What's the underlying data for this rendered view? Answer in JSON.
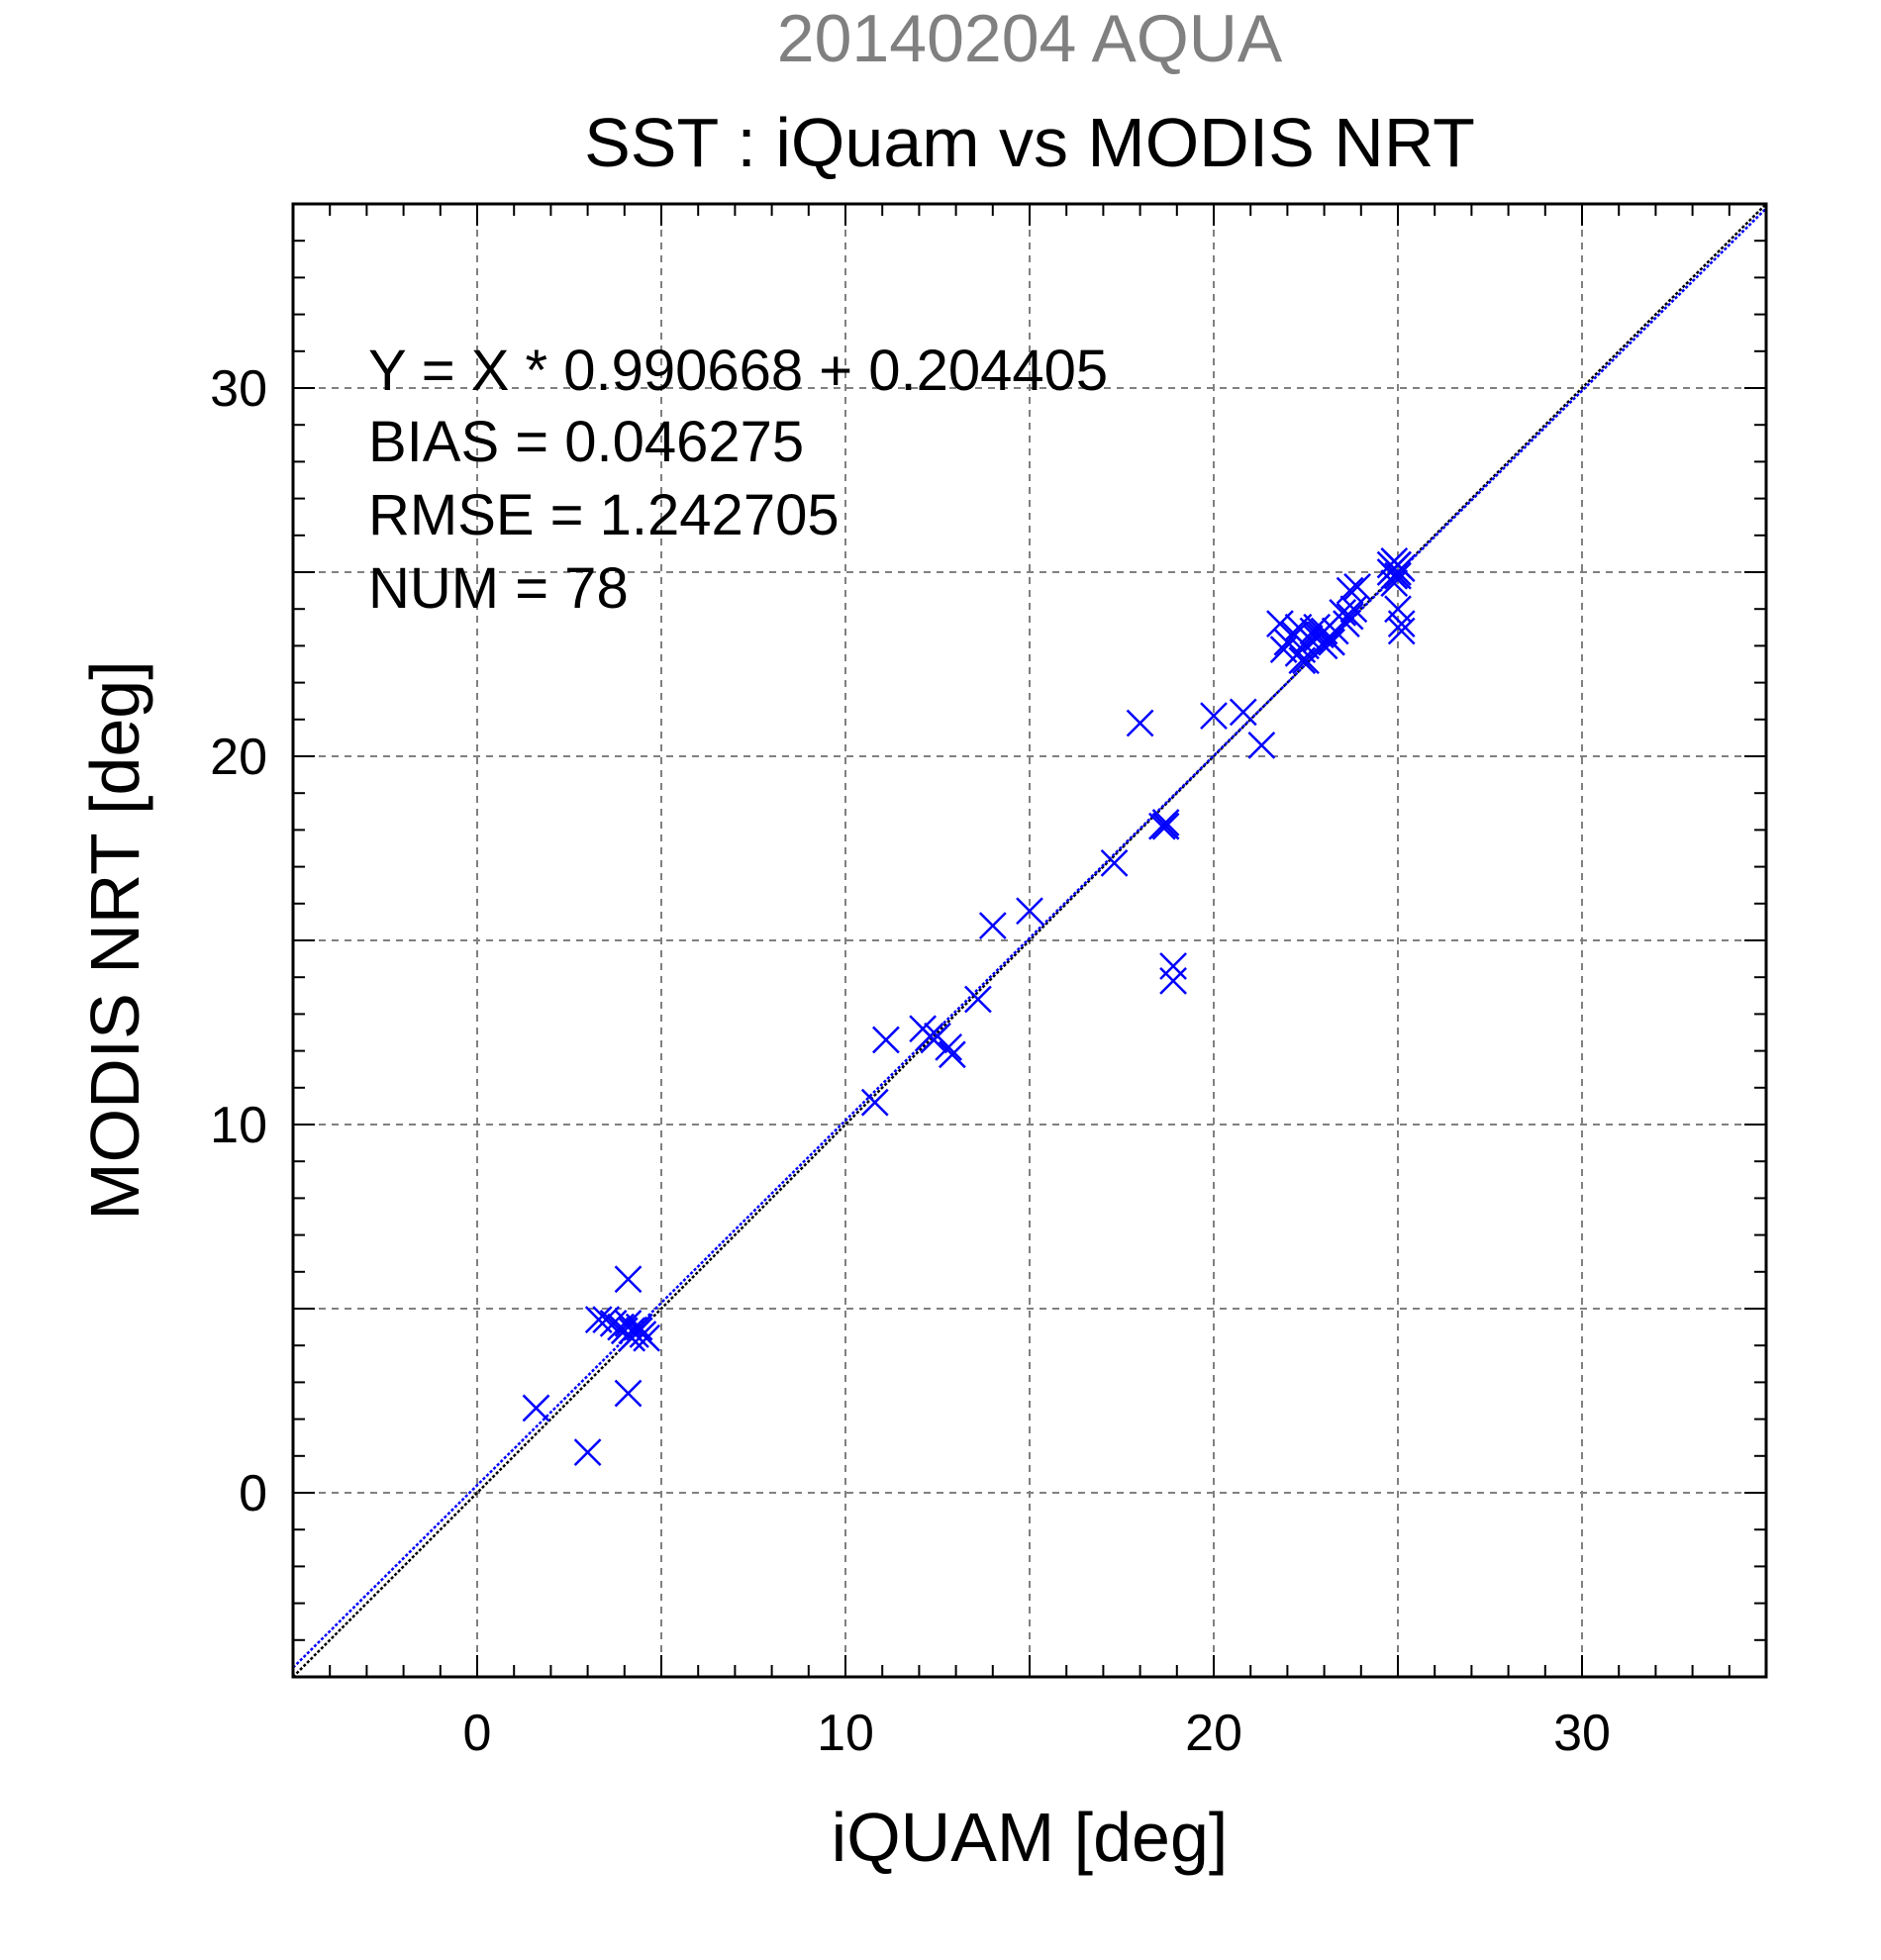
{
  "chart_data": {
    "type": "scatter",
    "title_top": "20140204 AQUA",
    "title": "SST : iQuam vs MODIS NRT",
    "xlabel": "iQUAM [deg]",
    "ylabel": "MODIS NRT [deg]",
    "xlim": [
      -5,
      35
    ],
    "ylim": [
      -5,
      35
    ],
    "xticks": [
      0,
      10,
      20,
      30
    ],
    "yticks": [
      0,
      10,
      20,
      30
    ],
    "x_tick_labels": [
      "0",
      "10",
      "20",
      "30"
    ],
    "y_tick_labels": [
      "0",
      "10",
      "20",
      "30"
    ],
    "grid": true,
    "marker": "x",
    "marker_color": "#0000ff",
    "stats": {
      "regression": "Y = X * 0.990668 + 0.204405",
      "bias": "BIAS = 0.046275",
      "rmse": "RMSE = 1.242705",
      "num": "NUM = 78"
    },
    "regression_line": {
      "slope": 0.990668,
      "intercept": 0.204405,
      "color": "#0000ff"
    },
    "identity_line": {
      "slope": 1,
      "intercept": 0,
      "color": "#000000"
    },
    "series": [
      {
        "points": [
          [
            1.6,
            2.3
          ],
          [
            3.0,
            1.1
          ],
          [
            4.1,
            2.7
          ],
          [
            4.1,
            5.8
          ],
          [
            3.3,
            4.7
          ],
          [
            3.5,
            4.7
          ],
          [
            3.7,
            4.6
          ],
          [
            3.9,
            4.5
          ],
          [
            4.0,
            4.4
          ],
          [
            4.1,
            4.6
          ],
          [
            4.2,
            4.4
          ],
          [
            4.3,
            4.3
          ],
          [
            4.4,
            4.4
          ],
          [
            4.5,
            4.3
          ],
          [
            4.6,
            4.2
          ],
          [
            4.4,
            4.5
          ],
          [
            4.2,
            4.2
          ],
          [
            10.8,
            10.6
          ],
          [
            11.1,
            12.3
          ],
          [
            12.1,
            12.6
          ],
          [
            12.3,
            12.4
          ],
          [
            12.5,
            12.4
          ],
          [
            12.4,
            12.3
          ],
          [
            12.8,
            12.1
          ],
          [
            12.9,
            11.9
          ],
          [
            13.6,
            13.4
          ],
          [
            14.0,
            15.4
          ],
          [
            15.0,
            15.8
          ],
          [
            17.3,
            17.1
          ],
          [
            18.0,
            20.9
          ],
          [
            18.6,
            18.1
          ],
          [
            18.7,
            18.2
          ],
          [
            18.7,
            18.1
          ],
          [
            18.9,
            14.3
          ],
          [
            18.9,
            13.9
          ],
          [
            20.0,
            21.1
          ],
          [
            20.8,
            21.2
          ],
          [
            21.3,
            20.3
          ],
          [
            21.8,
            23.6
          ],
          [
            21.9,
            22.9
          ],
          [
            22.0,
            23.1
          ],
          [
            22.2,
            23.3
          ],
          [
            22.3,
            23.5
          ],
          [
            22.3,
            22.8
          ],
          [
            22.4,
            22.6
          ],
          [
            22.5,
            22.6
          ],
          [
            22.5,
            23.0
          ],
          [
            22.6,
            23.2
          ],
          [
            22.7,
            23.4
          ],
          [
            22.8,
            23.5
          ],
          [
            22.8,
            23.2
          ],
          [
            22.9,
            23.3
          ],
          [
            23.0,
            23.0
          ],
          [
            23.0,
            23.4
          ],
          [
            23.1,
            23.2
          ],
          [
            23.3,
            23.4
          ],
          [
            23.5,
            23.9
          ],
          [
            23.6,
            23.6
          ],
          [
            23.7,
            23.8
          ],
          [
            23.8,
            24.0
          ],
          [
            23.7,
            24.5
          ],
          [
            23.9,
            24.6
          ],
          [
            24.8,
            25.2
          ],
          [
            24.8,
            25.0
          ],
          [
            24.9,
            25.3
          ],
          [
            24.9,
            25.1
          ],
          [
            25.0,
            25.2
          ],
          [
            25.0,
            24.9
          ],
          [
            25.0,
            25.0
          ],
          [
            25.1,
            25.1
          ],
          [
            24.9,
            24.9
          ],
          [
            25.0,
            24.0
          ],
          [
            25.1,
            23.6
          ],
          [
            25.1,
            23.4
          ],
          [
            24.9,
            24.7
          ],
          [
            22.4,
            22.9
          ],
          [
            23.2,
            23.1
          ],
          [
            25.0,
            25.2
          ]
        ]
      }
    ]
  }
}
